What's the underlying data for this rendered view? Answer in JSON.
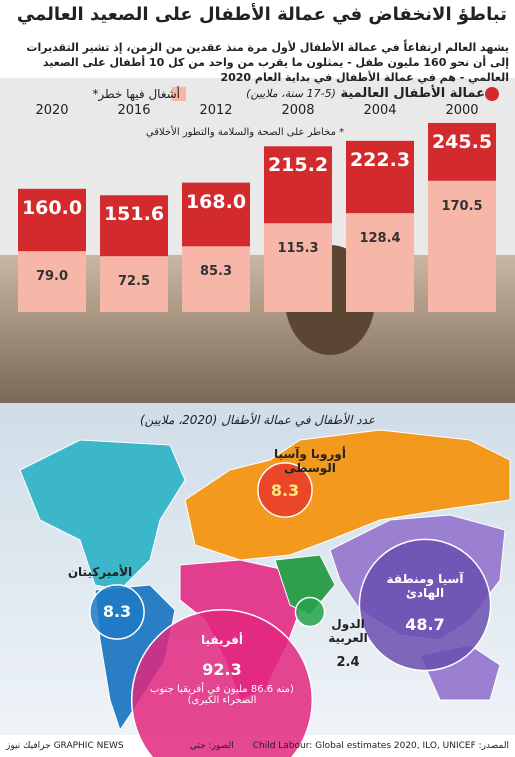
{
  "title": "تباطؤ الانخفاض في عمالة الأطفال على الصعيد العالمي",
  "subtitle": "يشهد العالم ارتفاعاً في عمالة الأطفال لأول مرة منذ عقدين من الزمن، إذ تشير التقديرات إلى أن نحو 160 مليون طفل - يمثلون ما يقرب من واحد من كل 10 أطفال على الصعيد العالمي - هم في عمالة الأطفال في بداية العام 2020",
  "chart_data": [
    {
      "type": "bar",
      "unit": "(5-17 سنة، ملايين)",
      "footnote": "* مخاطر على الصحة والسلامة والتطور الأخلاقي",
      "categories": [
        "2020",
        "2016",
        "2012",
        "2008",
        "2004",
        "2000"
      ],
      "series": [
        {
          "name": "عمالة الأطفال العالمية",
          "color": "#d32a2e",
          "values": [
            160.0,
            151.6,
            168.0,
            215.2,
            222.3,
            245.5
          ],
          "value_labels": [
            "160.0",
            "151.6",
            "168.0",
            "215.2",
            "222.3",
            "245.5"
          ]
        },
        {
          "name": "أشغال فيها خطر*",
          "color": "#f6b6a8",
          "values": [
            79.0,
            72.5,
            85.3,
            115.3,
            128.4,
            170.5
          ],
          "value_labels": [
            "79.0",
            "72.5",
            "85.3",
            "115.3",
            "128.4",
            "170.5"
          ]
        }
      ]
    },
    {
      "type": "bubble",
      "title": "عدد الأطفال في عمالة الأطفال (2020، ملايين)",
      "categories": [
        "أوروبا وآسيا الوسطى",
        "الأميركيتان",
        "أفريقيا",
        "الدول العربية",
        "آسيا ومنطقة الهادئ"
      ],
      "values": [
        8.3,
        8.3,
        92.3,
        2.4,
        48.7
      ],
      "colors": [
        "#e8372a",
        "#1f7ac4",
        "#e2277f",
        "#23a24a",
        "#6a4fb0"
      ],
      "note": "(منه 86.6 مليون في أفريقيا جنوب الصحراء الكبرى)"
    }
  ],
  "footer": {
    "source": "المصدر: Child Labour: Global estimates 2020, ILO, UNICEF",
    "photos": "الصور: جتي",
    "brand": "GRAPHIC NEWS جرافيك نيوز"
  }
}
